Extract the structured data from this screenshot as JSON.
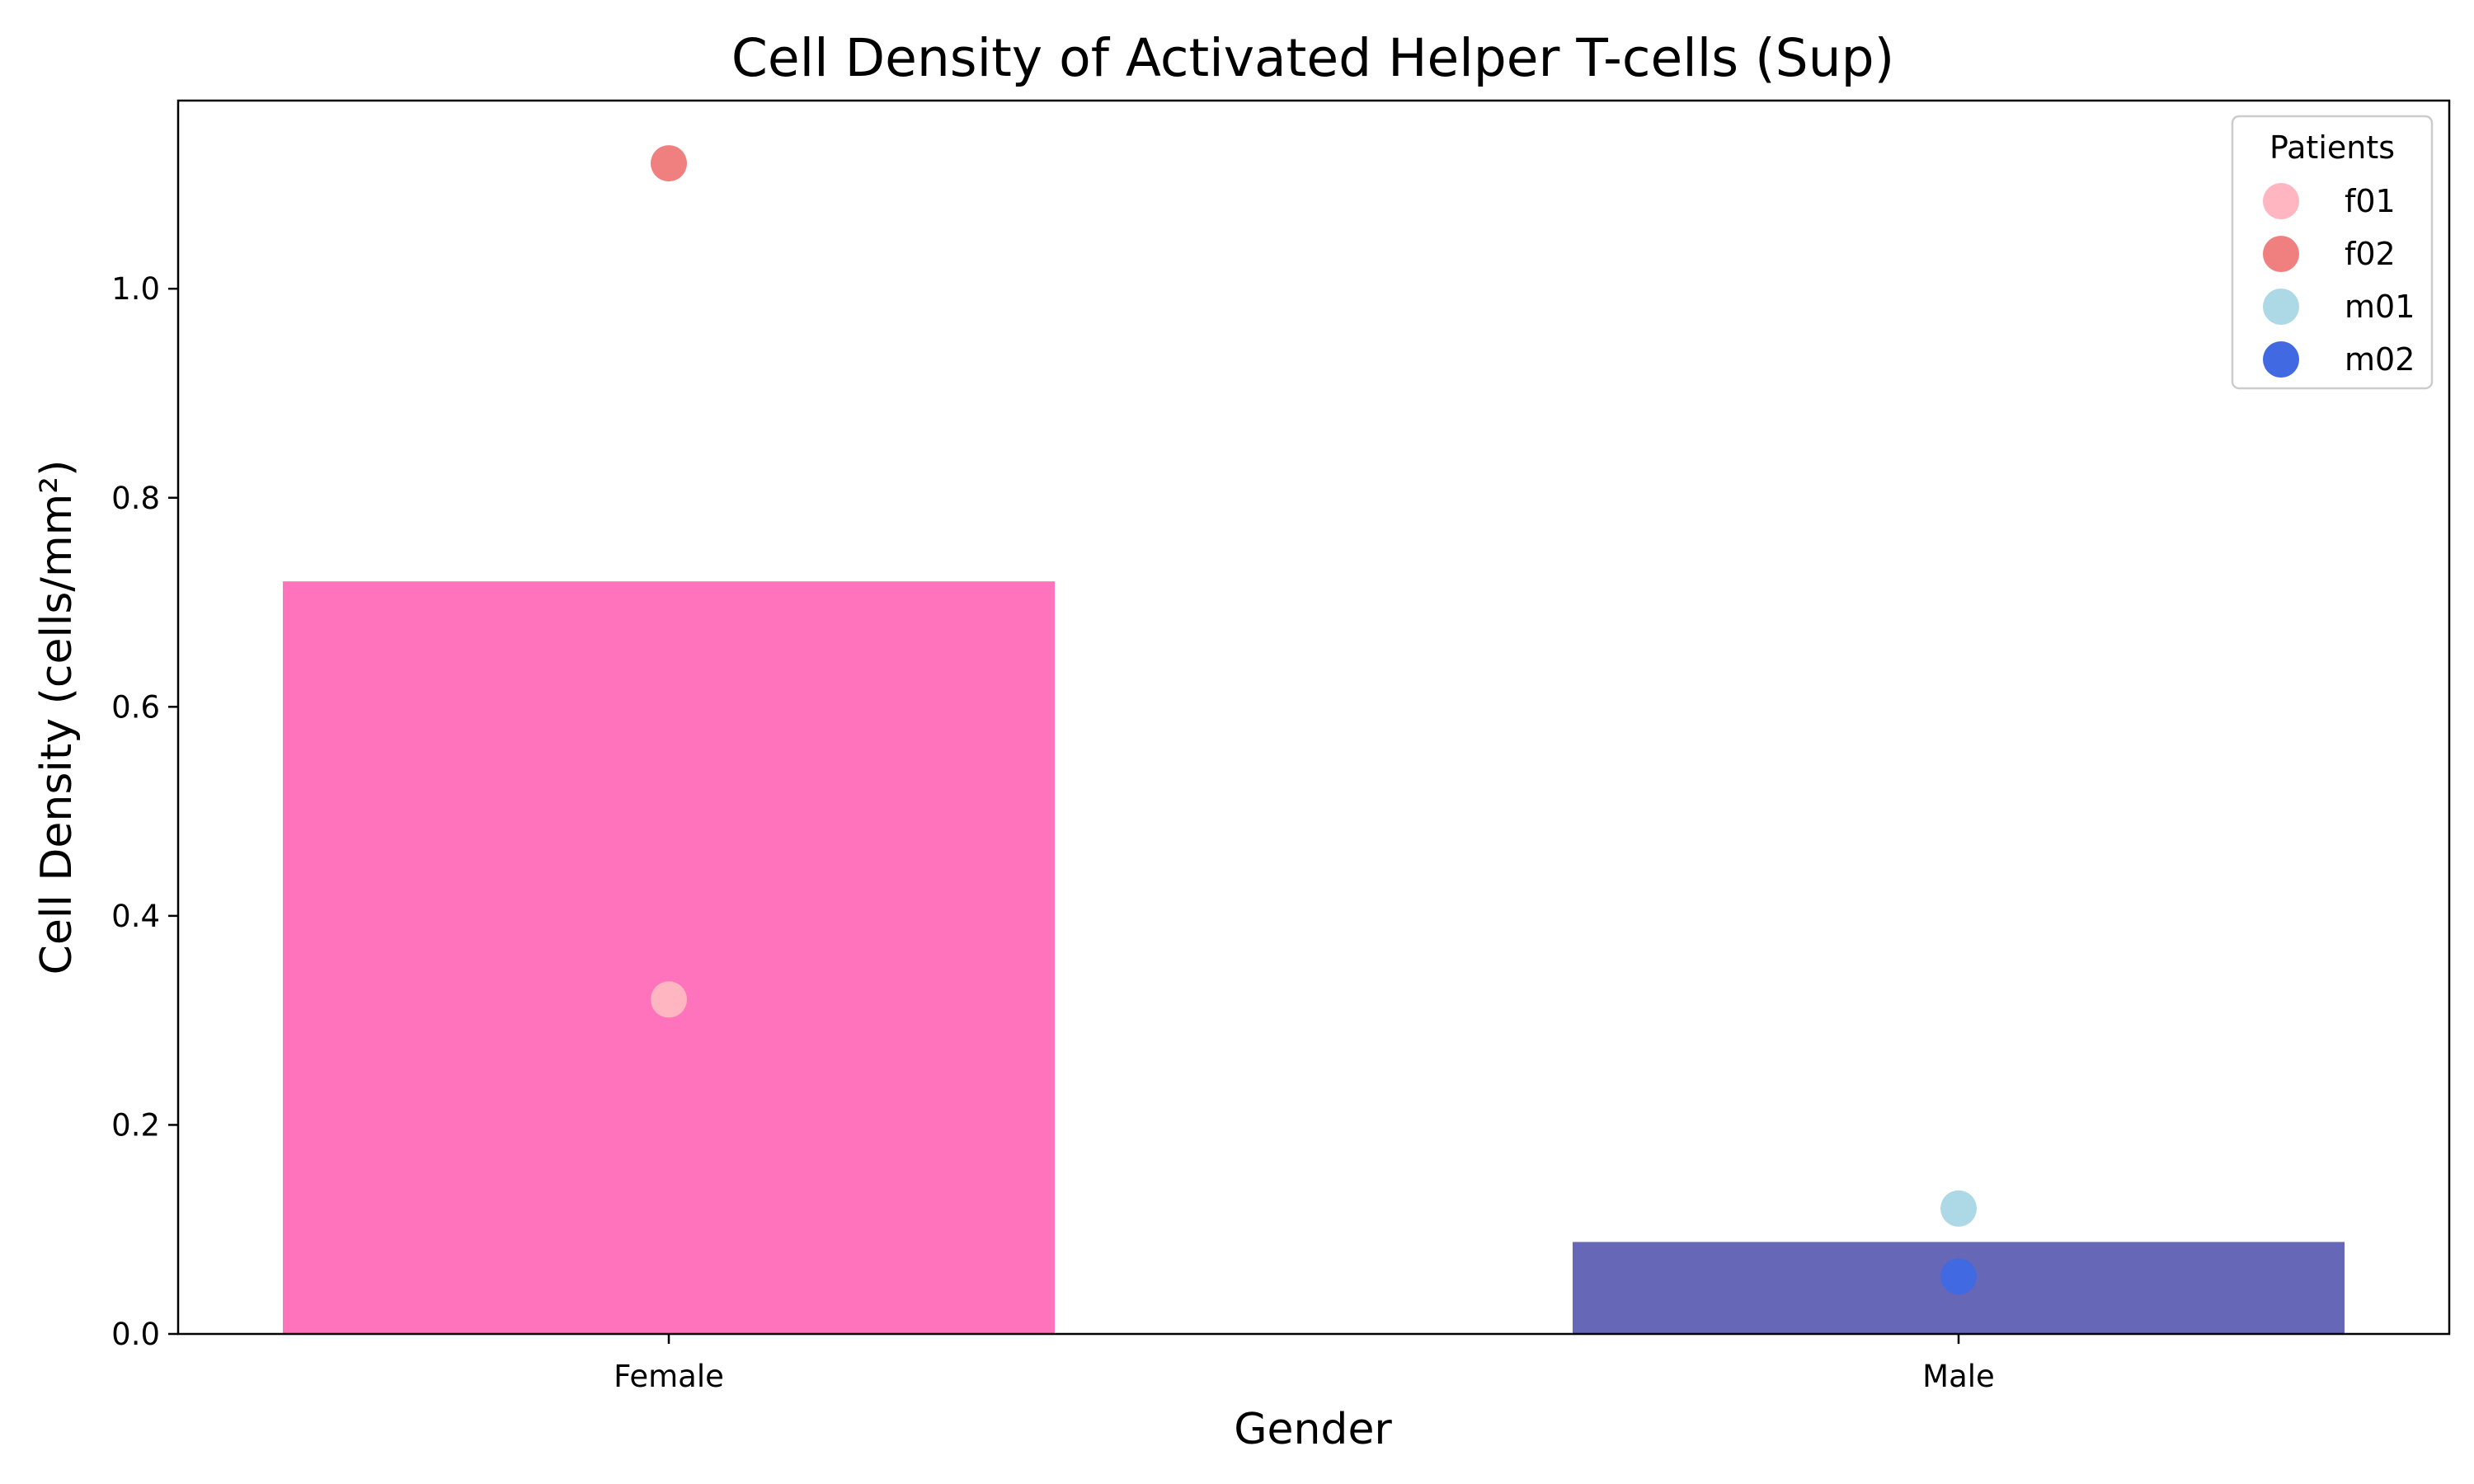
{
  "chart_data": {
    "type": "bar",
    "title": "Cell Density of Activated Helper T-cells (Sup)",
    "xlabel": "Gender",
    "ylabel": "Cell Density (cells/mm²)",
    "categories": [
      "Female",
      "Male"
    ],
    "values": [
      0.72,
      0.088
    ],
    "bar_colors": [
      "#ff73bc",
      "#6767b7"
    ],
    "ylim": [
      0,
      1.18
    ],
    "yticks": [
      0.0,
      0.2,
      0.4,
      0.6,
      0.8,
      1.0
    ],
    "ytick_labels": [
      "0.0",
      "0.2",
      "0.4",
      "0.6",
      "0.8",
      "1.0"
    ],
    "grid": false,
    "points": [
      {
        "patient": "f01",
        "category": "Female",
        "value": 0.32,
        "color": "#ffb6c1"
      },
      {
        "patient": "f02",
        "category": "Female",
        "value": 1.12,
        "color": "#f08080"
      },
      {
        "patient": "m01",
        "category": "Male",
        "value": 0.12,
        "color": "#add8e6"
      },
      {
        "patient": "m02",
        "category": "Male",
        "value": 0.055,
        "color": "#4169e1"
      }
    ],
    "legend": {
      "title": "Patients",
      "placement": "top-right",
      "entries": [
        {
          "label": "f01",
          "color": "#ffb6c1"
        },
        {
          "label": "f02",
          "color": "#f08080"
        },
        {
          "label": "m01",
          "color": "#add8e6"
        },
        {
          "label": "m02",
          "color": "#4169e1"
        }
      ]
    }
  }
}
